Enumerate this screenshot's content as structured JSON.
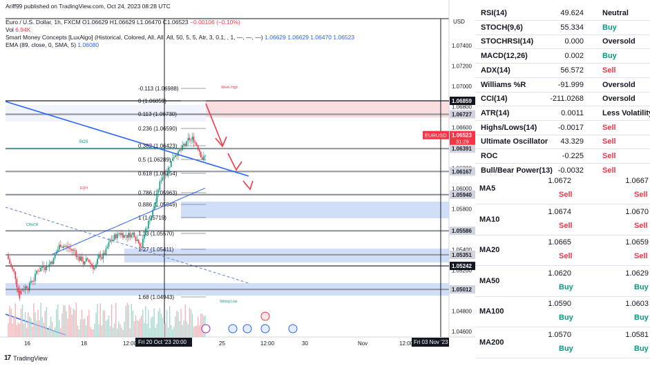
{
  "chart": {
    "published_by": "Ariff99 published on TradingView.com, Oct 24, 2023 08:28 UTC",
    "symbol_line": {
      "name": "Euro / U.S. Dollar, 1h, FXCM",
      "ohlc": "O1.06629 H1.06629 L1.06470 C1.06523",
      "change": "−0.00106 (−0.10%)"
    },
    "volume_line": {
      "label": "Vol",
      "value": "6.94K"
    },
    "smc_line": {
      "label": "Smart Money Concepts [LuxAlgo] (Historical, Colored, All, All, All, 50, 5, 5, Atr, 3, 0.1, , 1, —, —, —)",
      "values": "1.06629  1.06629  1.06470  1.06523"
    },
    "ema_line": {
      "label": "EMA (89, close, 0, SMA, 5)",
      "value": "1.06080"
    },
    "currency": "USD",
    "price_axis": [
      "1.07400",
      "1.07200",
      "1.07000",
      "1.06800",
      "1.06600",
      "1.06400",
      "1.06200",
      "1.06000",
      "1.05800",
      "1.05600",
      "1.05400",
      "1.05200",
      "1.05000",
      "1.04800",
      "1.04600"
    ],
    "price_tags": [
      {
        "label": "1.06859",
        "color": "#131722",
        "text": "#ffffff"
      },
      {
        "label": "1.06727",
        "color": "#d1d4dc",
        "text": "#131722"
      },
      {
        "label": "1.06391",
        "color": "#d1d4dc",
        "text": "#131722"
      },
      {
        "label": "1.06167",
        "color": "#d1d4dc",
        "text": "#131722"
      },
      {
        "label": "1.05940",
        "color": "#d1d4dc",
        "text": "#131722"
      },
      {
        "label": "1.05586",
        "color": "#d1d4dc",
        "text": "#131722"
      },
      {
        "label": "1.05351",
        "color": "#d1d4dc",
        "text": "#131722"
      },
      {
        "label": "1.05242",
        "color": "#131722",
        "text": "#ffffff"
      },
      {
        "label": "1.05012",
        "color": "#d1d4dc",
        "text": "#131722"
      }
    ],
    "symbol_tag": {
      "symbol": "EURUSD",
      "price": "1.06523",
      "countdown": "31:29",
      "color": "#f23645"
    },
    "fib_levels": [
      "-0.113 (1.06988)",
      "0 (1.06859)",
      "0.113 (1.06730)",
      "0.236 (1.06590)",
      "0.382 (1.06423)",
      "0.5 (1.06289)",
      "0.618 (1.06154)",
      "0.786 (1.05963)",
      "0.886 (1.05849)",
      "1 (1.05719)",
      "1.13 (1.05570)",
      "1.27 (1.05411)",
      "1.68 (1.04943)"
    ],
    "smc_labels": {
      "week_high": "Week High",
      "strong_low": "Strong Low",
      "bos": "BOS",
      "choch": "CHoCH",
      "eqh": "EQH"
    },
    "time_axis": [
      "16",
      "18",
      "12:00",
      "25",
      "12:00",
      "30",
      "Nov",
      "12:00"
    ],
    "time_highlight": [
      "Fri 20 Oct '23  20:00",
      "Fri 03 Nov '23"
    ],
    "logo_text": "TradingView"
  },
  "indicators": [
    {
      "name": "RSI(14)",
      "value": "49.624",
      "action": "Neutral",
      "status": "neutral"
    },
    {
      "name": "STOCH(9,6)",
      "value": "55.334",
      "action": "Buy",
      "status": "buy"
    },
    {
      "name": "STOCHRSI(14)",
      "value": "0.000",
      "action": "Oversold",
      "status": "neutral"
    },
    {
      "name": "MACD(12,26)",
      "value": "0.002",
      "action": "Buy",
      "status": "buy"
    },
    {
      "name": "ADX(14)",
      "value": "56.572",
      "action": "Sell",
      "status": "sell"
    },
    {
      "name": "Williams %R",
      "value": "-91.999",
      "action": "Oversold",
      "status": "neutral"
    },
    {
      "name": "CCI(14)",
      "value": "-211.0268",
      "action": "Oversold",
      "status": "neutral"
    },
    {
      "name": "ATR(14)",
      "value": "0.0011",
      "action": "Less Volatility",
      "status": "neutral"
    },
    {
      "name": "Highs/Lows(14)",
      "value": "-0.0017",
      "action": "Sell",
      "status": "sell"
    },
    {
      "name": "Ultimate Oscillator",
      "value": "43.329",
      "action": "Sell",
      "status": "sell"
    },
    {
      "name": "ROC",
      "value": "-0.225",
      "action": "Sell",
      "status": "sell"
    },
    {
      "name": "Bull/Bear Power(13)",
      "value": "-0.0032",
      "action": "Sell",
      "status": "sell"
    }
  ],
  "moving_averages": [
    {
      "name": "MA5",
      "v1": "1.0672",
      "a1": "Sell",
      "s1": "sell",
      "v2": "1.0667",
      "a2": "Sell",
      "s2": "sell"
    },
    {
      "name": "MA10",
      "v1": "1.0674",
      "a1": "Sell",
      "s1": "sell",
      "v2": "1.0670",
      "a2": "Sell",
      "s2": "sell"
    },
    {
      "name": "MA20",
      "v1": "1.0665",
      "a1": "Sell",
      "s1": "sell",
      "v2": "1.0659",
      "a2": "Sell",
      "s2": "sell"
    },
    {
      "name": "MA50",
      "v1": "1.0620",
      "a1": "Buy",
      "s1": "buy",
      "v2": "1.0629",
      "a2": "Buy",
      "s2": "buy"
    },
    {
      "name": "MA100",
      "v1": "1.0590",
      "a1": "Buy",
      "s1": "buy",
      "v2": "1.0603",
      "a2": "Buy",
      "s2": "buy"
    },
    {
      "name": "MA200",
      "v1": "1.0570",
      "a1": "Buy",
      "s1": "buy",
      "v2": "1.0581",
      "a2": "Buy",
      "s2": "buy"
    }
  ]
}
